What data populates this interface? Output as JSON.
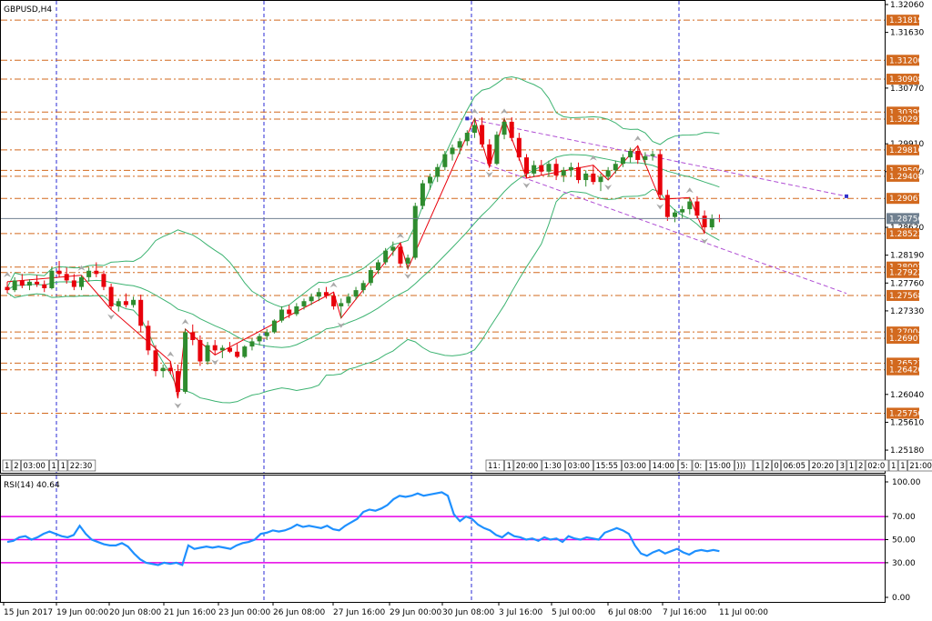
{
  "header": {
    "symbol": "GBPUSD,H4",
    "indicator": "RSI(14) 40.64"
  },
  "colors": {
    "bull": "#2e8b2e",
    "bear": "#e8000b",
    "band": "#3cb371",
    "zigzag": "#e8000b",
    "level": "#d2691e",
    "vline": "#2929d6",
    "channel": "#b04fd4",
    "rsi": "#1e90ff",
    "rsi_levels": "#e600e6",
    "current": "#708090"
  },
  "chart_data": [
    {
      "type": "candlestick",
      "title": "GBPUSD,H4",
      "ylim": [
        1.249,
        1.3206
      ],
      "y_ticks": [
        "1.32060",
        "1.31630",
        "1.30770",
        "1.29910",
        "1.29480",
        "1.28620",
        "1.28190",
        "1.27760",
        "1.27330",
        "1.26040",
        "1.25610",
        "1.25180"
      ],
      "x_ticks": [
        "15 Jun 2017",
        "19 Jun 00:00",
        "20 Jun 08:00",
        "21 Jun 16:00",
        "23 Jun 00:00",
        "26 Jun 08:00",
        "27 Jun 16:00",
        "29 Jun 00:00",
        "30 Jun 08:00",
        "3 Jul 16:00",
        "5 Jul 00:00",
        "6 Jul 08:00",
        "7 Jul 16:00",
        "11 Jul 00:00"
      ],
      "current_price": "1.28756",
      "levels": [
        {
          "label": "1.31819",
          "value": 1.31819
        },
        {
          "label": "1.31200",
          "value": 1.312
        },
        {
          "label": "1.30908",
          "value": 1.30908
        },
        {
          "label": "1.30399",
          "value": 1.30399
        },
        {
          "label": "1.30291",
          "value": 1.30291
        },
        {
          "label": "1.29816",
          "value": 1.29816
        },
        {
          "label": "1.29500",
          "value": 1.295
        },
        {
          "label": "1.29408",
          "value": 1.29408
        },
        {
          "label": "1.29067",
          "value": 1.29067
        },
        {
          "label": "1.28523",
          "value": 1.28523
        },
        {
          "label": "1.28007",
          "value": 1.28007
        },
        {
          "label": "1.27922",
          "value": 1.27922
        },
        {
          "label": "1.27568",
          "value": 1.27568
        },
        {
          "label": "1.27004",
          "value": 1.27004
        },
        {
          "label": "1.26907",
          "value": 1.26907
        },
        {
          "label": "1.26523",
          "value": 1.26523
        },
        {
          "label": "1.26420",
          "value": 1.2642
        },
        {
          "label": "1.25750",
          "value": 1.2575
        }
      ],
      "candles": [
        [
          1.277,
          1.2778,
          1.276,
          1.2765
        ],
        [
          1.2765,
          1.2785,
          1.2762,
          1.278
        ],
        [
          1.278,
          1.279,
          1.2768,
          1.2772
        ],
        [
          1.2772,
          1.2782,
          1.2765,
          1.2778
        ],
        [
          1.2778,
          1.2788,
          1.277,
          1.2774
        ],
        [
          1.2774,
          1.278,
          1.2762,
          1.2768
        ],
        [
          1.2768,
          1.28,
          1.2766,
          1.2795
        ],
        [
          1.2795,
          1.281,
          1.2785,
          1.279
        ],
        [
          1.279,
          1.28,
          1.2775,
          1.278
        ],
        [
          1.278,
          1.279,
          1.2765,
          1.277
        ],
        [
          1.277,
          1.2788,
          1.2765,
          1.2785
        ],
        [
          1.2785,
          1.28,
          1.2778,
          1.2795
        ],
        [
          1.2795,
          1.2808,
          1.2785,
          1.279
        ],
        [
          1.279,
          1.2795,
          1.2765,
          1.277
        ],
        [
          1.277,
          1.2775,
          1.2735,
          1.274
        ],
        [
          1.274,
          1.2752,
          1.2732,
          1.2748
        ],
        [
          1.2748,
          1.276,
          1.2738,
          1.2742
        ],
        [
          1.2742,
          1.2755,
          1.2738,
          1.275
        ],
        [
          1.275,
          1.2758,
          1.27,
          1.271
        ],
        [
          1.271,
          1.2718,
          1.2665,
          1.2672
        ],
        [
          1.2672,
          1.268,
          1.2632,
          1.264
        ],
        [
          1.264,
          1.265,
          1.263,
          1.2645
        ],
        [
          1.2645,
          1.2655,
          1.2635,
          1.264
        ],
        [
          1.264,
          1.265,
          1.2598,
          1.2608
        ],
        [
          1.2608,
          1.2705,
          1.2605,
          1.27
        ],
        [
          1.27,
          1.2712,
          1.268,
          1.2688
        ],
        [
          1.2688,
          1.2695,
          1.2648,
          1.2655
        ],
        [
          1.2655,
          1.2685,
          1.265,
          1.268
        ],
        [
          1.268,
          1.2688,
          1.2665,
          1.2672
        ],
        [
          1.2672,
          1.268,
          1.266,
          1.2676
        ],
        [
          1.2676,
          1.2685,
          1.2668,
          1.267
        ],
        [
          1.267,
          1.2682,
          1.266,
          1.2662
        ],
        [
          1.2662,
          1.268,
          1.266,
          1.2678
        ],
        [
          1.2678,
          1.269,
          1.2672,
          1.2686
        ],
        [
          1.2686,
          1.2698,
          1.268,
          1.2694
        ],
        [
          1.2694,
          1.2705,
          1.2688,
          1.27
        ],
        [
          1.27,
          1.272,
          1.2698,
          1.2718
        ],
        [
          1.2718,
          1.274,
          1.2715,
          1.2735
        ],
        [
          1.2735,
          1.2742,
          1.2722,
          1.2728
        ],
        [
          1.2728,
          1.2745,
          1.2725,
          1.274
        ],
        [
          1.274,
          1.2752,
          1.2735,
          1.2748
        ],
        [
          1.2748,
          1.276,
          1.2742,
          1.2755
        ],
        [
          1.2755,
          1.2768,
          1.2748,
          1.2762
        ],
        [
          1.2762,
          1.277,
          1.2752,
          1.2756
        ],
        [
          1.2756,
          1.2762,
          1.2735,
          1.274
        ],
        [
          1.274,
          1.2752,
          1.2722,
          1.2745
        ],
        [
          1.2745,
          1.276,
          1.274,
          1.2755
        ],
        [
          1.2755,
          1.277,
          1.275,
          1.2765
        ],
        [
          1.2765,
          1.278,
          1.276,
          1.2776
        ],
        [
          1.2776,
          1.28,
          1.2772,
          1.2796
        ],
        [
          1.2796,
          1.2812,
          1.279,
          1.2808
        ],
        [
          1.2808,
          1.283,
          1.2804,
          1.2826
        ],
        [
          1.2826,
          1.284,
          1.2818,
          1.2832
        ],
        [
          1.2832,
          1.2838,
          1.28,
          1.2806
        ],
        [
          1.2806,
          1.282,
          1.2798,
          1.2815
        ],
        [
          1.2815,
          1.29,
          1.2812,
          1.2895
        ],
        [
          1.2895,
          1.2935,
          1.289,
          1.293
        ],
        [
          1.293,
          1.2945,
          1.292,
          1.294
        ],
        [
          1.294,
          1.296,
          1.2932,
          1.2955
        ],
        [
          1.2955,
          1.298,
          1.295,
          1.2975
        ],
        [
          1.2975,
          1.299,
          1.2965,
          1.2985
        ],
        [
          1.2985,
          1.3,
          1.2975,
          1.2995
        ],
        [
          1.2995,
          1.3012,
          1.2988,
          1.3008
        ],
        [
          1.3008,
          1.303,
          1.3,
          1.302
        ],
        [
          1.302,
          1.3032,
          1.2985,
          1.299
        ],
        [
          1.299,
          1.2998,
          1.2955,
          1.296
        ],
        [
          1.296,
          1.301,
          1.2958,
          1.3005
        ],
        [
          1.3005,
          1.303,
          1.2998,
          1.3025
        ],
        [
          1.3025,
          1.3032,
          1.2995,
          1.3
        ],
        [
          1.3,
          1.3008,
          1.2965,
          1.297
        ],
        [
          1.297,
          1.2975,
          1.2938,
          1.2945
        ],
        [
          1.2945,
          1.2965,
          1.294,
          1.2958
        ],
        [
          1.2958,
          1.2966,
          1.2942,
          1.2948
        ],
        [
          1.2948,
          1.2965,
          1.294,
          1.296
        ],
        [
          1.296,
          1.2968,
          1.2935,
          1.2942
        ],
        [
          1.2942,
          1.2955,
          1.2932,
          1.295
        ],
        [
          1.295,
          1.2962,
          1.294,
          1.2955
        ],
        [
          1.2955,
          1.2962,
          1.293,
          1.2935
        ],
        [
          1.2935,
          1.295,
          1.2925,
          1.2945
        ],
        [
          1.2945,
          1.2958,
          1.2928,
          1.2932
        ],
        [
          1.2932,
          1.2945,
          1.2918,
          1.294
        ],
        [
          1.294,
          1.2955,
          1.2935,
          1.295
        ],
        [
          1.295,
          1.2965,
          1.2945,
          1.296
        ],
        [
          1.296,
          1.2975,
          1.2955,
          1.297
        ],
        [
          1.297,
          1.2985,
          1.2962,
          1.298
        ],
        [
          1.298,
          1.2988,
          1.296,
          1.2966
        ],
        [
          1.2966,
          1.2978,
          1.2958,
          1.2972
        ],
        [
          1.2972,
          1.298,
          1.2965,
          1.2975
        ],
        [
          1.2975,
          1.2982,
          1.2905,
          1.2912
        ],
        [
          1.2912,
          1.292,
          1.2872,
          1.2878
        ],
        [
          1.2878,
          1.289,
          1.287,
          1.2885
        ],
        [
          1.2885,
          1.2895,
          1.2875,
          1.289
        ],
        [
          1.289,
          1.2908,
          1.2882,
          1.2902
        ],
        [
          1.2902,
          1.291,
          1.2875,
          1.288
        ],
        [
          1.288,
          1.2888,
          1.2852,
          1.2862
        ],
        [
          1.2862,
          1.2882,
          1.2858,
          1.2876
        ],
        [
          1.2876,
          1.2882,
          1.287,
          1.2875
        ]
      ]
    },
    {
      "type": "line",
      "title": "RSI(14) 40.64",
      "ylim": [
        0,
        100
      ],
      "y_ticks": [
        "100.00",
        "70.00",
        "50.00",
        "30.00",
        "0.00"
      ],
      "levels": [
        70,
        50,
        30
      ],
      "values": [
        48,
        49,
        52,
        53,
        50,
        52,
        55,
        57,
        55,
        53,
        52,
        54,
        62,
        55,
        50,
        48,
        46,
        45,
        45,
        47,
        44,
        38,
        33,
        30,
        29,
        28,
        30,
        29,
        30,
        28,
        45,
        42,
        43,
        44,
        43,
        44,
        43,
        42,
        45,
        47,
        48,
        50,
        55,
        56,
        58,
        57,
        58,
        60,
        63,
        61,
        62,
        61,
        60,
        62,
        59,
        58,
        62,
        65,
        68,
        74,
        76,
        75,
        77,
        80,
        85,
        88,
        87,
        88,
        90,
        88,
        89,
        90,
        91,
        88,
        72,
        66,
        70,
        68,
        63,
        60,
        58,
        54,
        52,
        56,
        53,
        52,
        50,
        51,
        49,
        52,
        50,
        51,
        48,
        53,
        51,
        50,
        52,
        51,
        50,
        56,
        58,
        60,
        58,
        55,
        45,
        38,
        36,
        39,
        41,
        38,
        40,
        42,
        39,
        37,
        40,
        41,
        40,
        41,
        40
      ]
    }
  ],
  "time_strip": {
    "left": [
      "1",
      "2",
      "03:00",
      "1",
      "1",
      "22:30"
    ],
    "right": [
      "11:",
      "1",
      "20:00",
      "1:30",
      "03:00",
      "15:55",
      "03:00",
      "14:00",
      "5:",
      "0:",
      "15:00",
      ")))",
      "1",
      "2",
      "0",
      "06:05",
      "20:20",
      "3",
      "1",
      "2",
      "02:0",
      "1",
      "1",
      "21:00",
      "1",
      "2"
    ]
  }
}
